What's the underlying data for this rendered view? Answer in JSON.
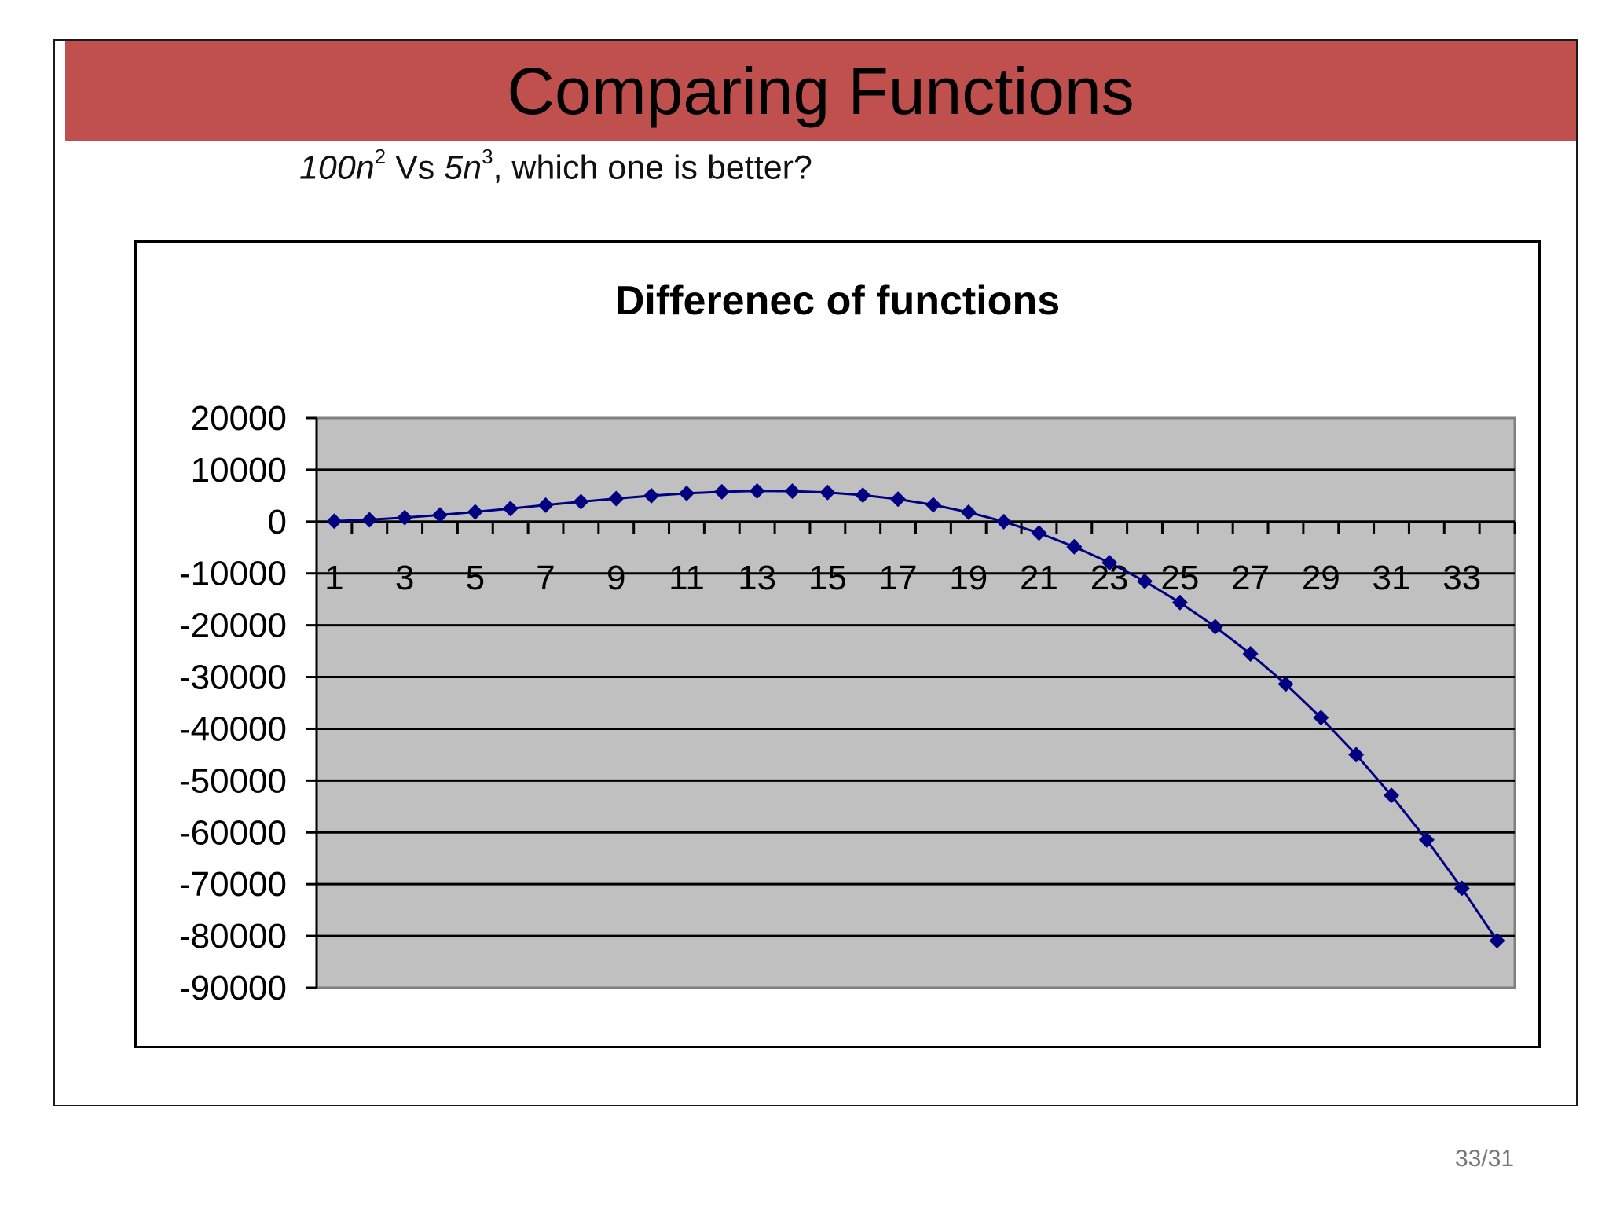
{
  "slide": {
    "title": "Comparing Functions",
    "subtitle": {
      "f1": "100n",
      "f1_exp": "2",
      "vs": " Vs ",
      "f2": "5n",
      "f2_exp": "3",
      "rest": ", which one is better?"
    },
    "page_number": "33/31",
    "colors": {
      "title_bar": "#c0504d",
      "plot_area": "#c0c0c0",
      "series": "#000080"
    }
  },
  "chart_data": {
    "type": "line",
    "title": "Differenec of functions",
    "xlabel": "",
    "ylabel": "",
    "x": [
      1,
      2,
      3,
      4,
      5,
      6,
      7,
      8,
      9,
      10,
      11,
      12,
      13,
      14,
      15,
      16,
      17,
      18,
      19,
      20,
      21,
      22,
      23,
      24,
      25,
      26,
      27,
      28,
      29,
      30,
      31,
      32,
      33,
      34
    ],
    "x_tick_labels": [
      "1",
      "3",
      "5",
      "7",
      "9",
      "11",
      "13",
      "15",
      "17",
      "19",
      "21",
      "23",
      "25",
      "27",
      "29",
      "31",
      "33"
    ],
    "y_tick_labels": [
      "20000",
      "10000",
      "0",
      "-10000",
      "-20000",
      "-30000",
      "-40000",
      "-50000",
      "-60000",
      "-70000",
      "-80000",
      "-90000"
    ],
    "ylim": [
      -90000,
      20000
    ],
    "grid": true,
    "legend": "none",
    "marker": "diamond",
    "series": [
      {
        "values": [
          95,
          360,
          765,
          1280,
          1875,
          2520,
          3185,
          3840,
          4455,
          5000,
          5445,
          5760,
          5915,
          5880,
          5625,
          5120,
          4335,
          3240,
          1805,
          0,
          -2205,
          -4840,
          -7935,
          -11520,
          -15625,
          -20280,
          -25515,
          -31360,
          -37845,
          -45000,
          -52855,
          -61440,
          -70785,
          -80920
        ]
      }
    ]
  }
}
